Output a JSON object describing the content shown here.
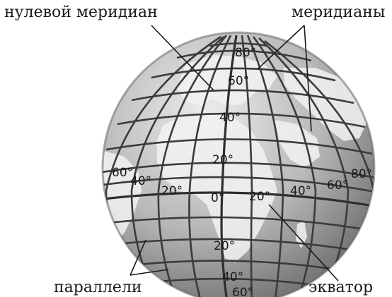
{
  "labels": {
    "prime_meridian": "нулевой меридиан",
    "meridians": "меридианы",
    "parallels": "параллели",
    "equator": "экватор"
  },
  "latitudes_north": [
    "80°",
    "60°",
    "40°",
    "20°"
  ],
  "latitudes_south": [
    "20°",
    "40°",
    "60°"
  ],
  "longitudes_west": [
    "60°",
    "40°",
    "20°"
  ],
  "longitude_zero": "0°",
  "longitudes_east": [
    "20°",
    "40°",
    "60°",
    "80°"
  ],
  "colors": {
    "ocean_light": "#e4e4e4",
    "ocean_dark": "#6f6f6f",
    "land": "#f4f4f4",
    "grid": "#3b3b3b",
    "text": "#1a1a1a"
  }
}
